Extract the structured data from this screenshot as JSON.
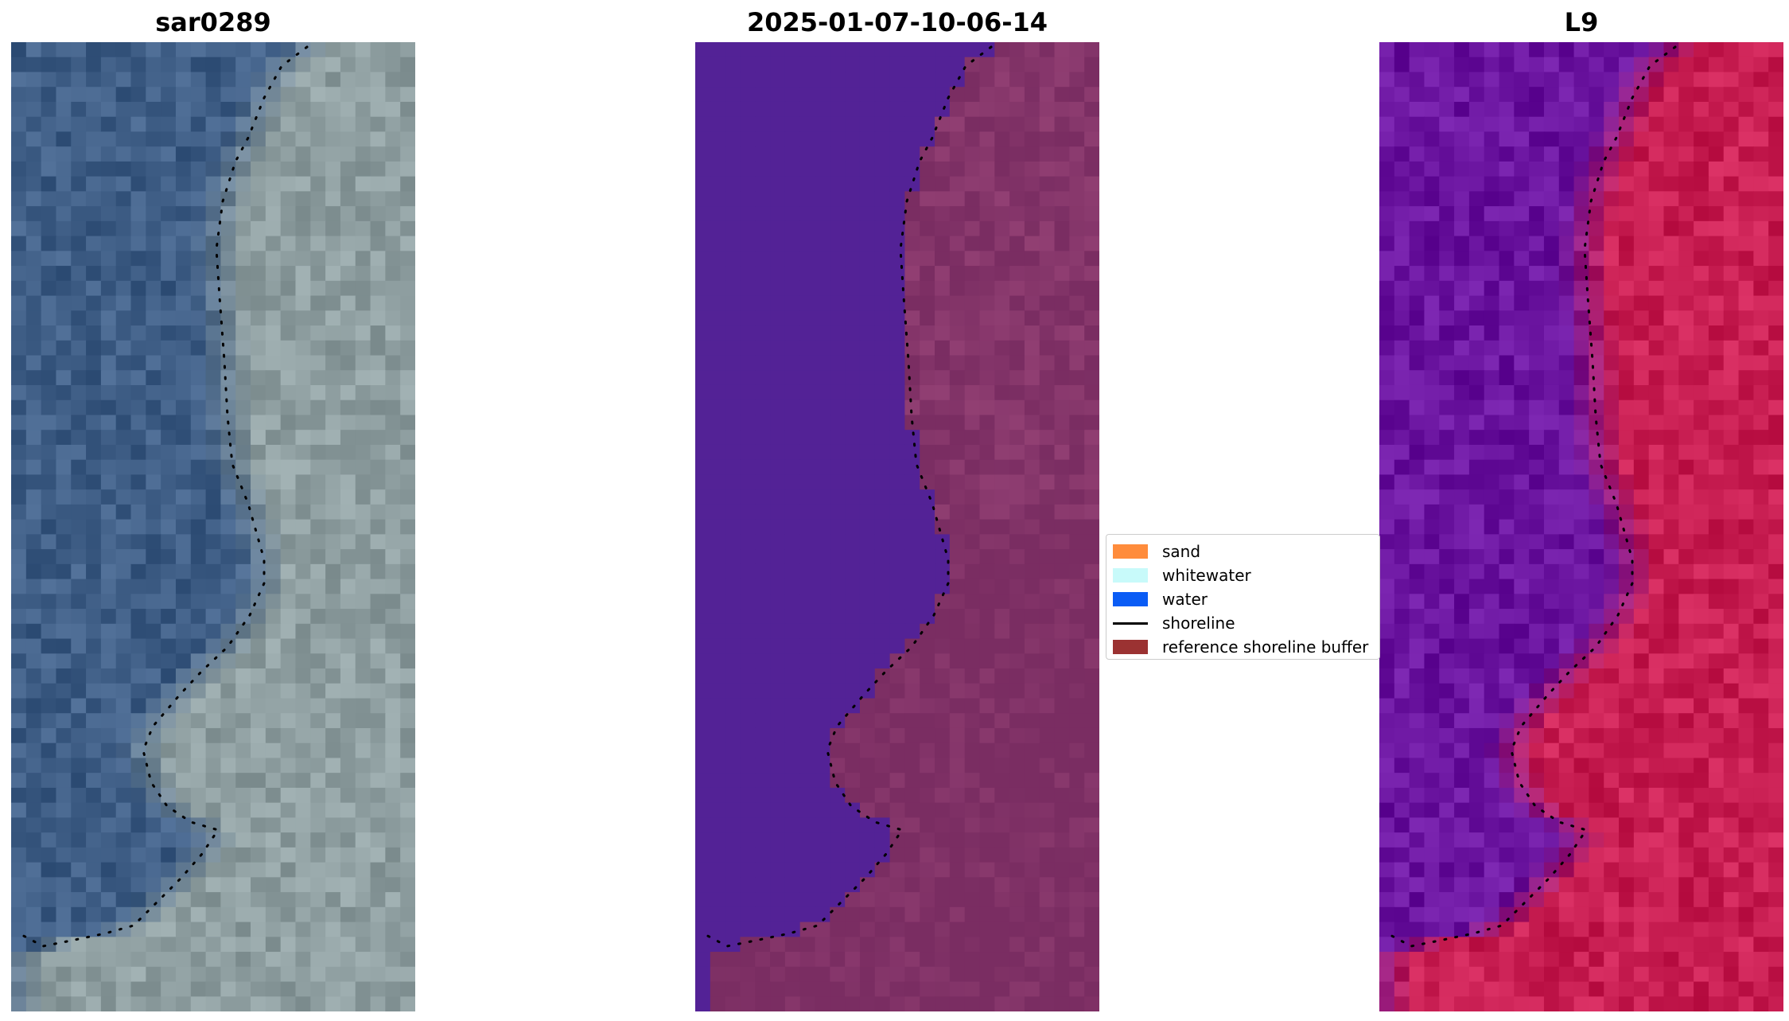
{
  "panels": [
    {
      "title": "sar0289",
      "style": "rgb"
    },
    {
      "title": "2025-01-07-10-06-14",
      "style": "classified"
    },
    {
      "title": "L9",
      "style": "index"
    }
  ],
  "legend": {
    "items": [
      {
        "label": "sand",
        "color": "#ff8c3c",
        "kind": "patch"
      },
      {
        "label": "whitewater",
        "color": "#c8fafa",
        "kind": "patch"
      },
      {
        "label": "water",
        "color": "#0a5cf5",
        "kind": "patch"
      },
      {
        "label": "shoreline",
        "color": "#000000",
        "kind": "line"
      },
      {
        "label": "reference shoreline buffer",
        "color": "#9b3232",
        "kind": "patch"
      }
    ]
  },
  "colors": {
    "rgb_water": "#3f5e86",
    "rgb_land": "#8e9ea0",
    "classified_water": "#532296",
    "classified_land": "#7a2d62",
    "index_water": "#6a149f",
    "index_land": "#c81e52"
  }
}
